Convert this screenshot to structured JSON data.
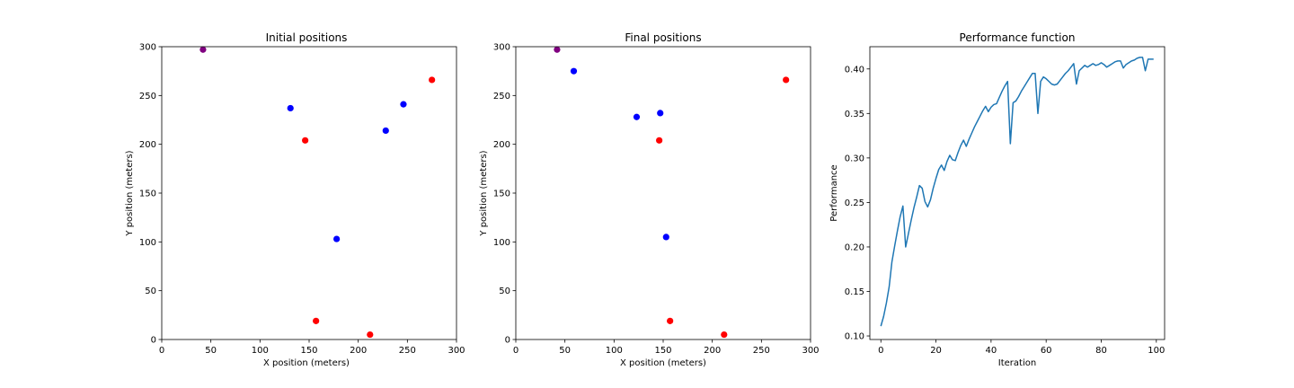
{
  "chart_data": [
    {
      "type": "scatter",
      "title": "Initial positions",
      "xlabel": "X position (meters)",
      "ylabel": "Y position (meters)",
      "xlim": [
        0,
        300
      ],
      "ylim": [
        0,
        300
      ],
      "xticks": [
        "0",
        "50",
        "100",
        "150",
        "200",
        "250",
        "300"
      ],
      "yticks": [
        "0",
        "50",
        "100",
        "150",
        "200",
        "250",
        "300"
      ],
      "grid": false,
      "points": [
        {
          "x": 42,
          "y": 297,
          "color": "#800080"
        },
        {
          "x": 275,
          "y": 266,
          "color": "#ff0000"
        },
        {
          "x": 146,
          "y": 204,
          "color": "#ff0000"
        },
        {
          "x": 157,
          "y": 19,
          "color": "#ff0000"
        },
        {
          "x": 212,
          "y": 5,
          "color": "#ff0000"
        },
        {
          "x": 131,
          "y": 237,
          "color": "#0000ff"
        },
        {
          "x": 246,
          "y": 241,
          "color": "#0000ff"
        },
        {
          "x": 228,
          "y": 214,
          "color": "#0000ff"
        },
        {
          "x": 178,
          "y": 103,
          "color": "#0000ff"
        }
      ]
    },
    {
      "type": "scatter",
      "title": "Final positions",
      "xlabel": "X position (meters)",
      "ylabel": "Y position (meters)",
      "xlim": [
        0,
        300
      ],
      "ylim": [
        0,
        300
      ],
      "xticks": [
        "0",
        "50",
        "100",
        "150",
        "200",
        "250",
        "300"
      ],
      "yticks": [
        "0",
        "50",
        "100",
        "150",
        "200",
        "250",
        "300"
      ],
      "grid": false,
      "points": [
        {
          "x": 42,
          "y": 297,
          "color": "#800080"
        },
        {
          "x": 275,
          "y": 266,
          "color": "#ff0000"
        },
        {
          "x": 146,
          "y": 204,
          "color": "#ff0000"
        },
        {
          "x": 157,
          "y": 19,
          "color": "#ff0000"
        },
        {
          "x": 212,
          "y": 5,
          "color": "#ff0000"
        },
        {
          "x": 59,
          "y": 275,
          "color": "#0000ff"
        },
        {
          "x": 123,
          "y": 228,
          "color": "#0000ff"
        },
        {
          "x": 147,
          "y": 232,
          "color": "#0000ff"
        },
        {
          "x": 153,
          "y": 105,
          "color": "#0000ff"
        }
      ]
    },
    {
      "type": "line",
      "title": "Performance function",
      "xlabel": "Iteration",
      "ylabel": "Performance",
      "xlim": [
        -4,
        103
      ],
      "ylim": [
        0.096,
        0.425
      ],
      "xticks": [
        "0",
        "20",
        "40",
        "60",
        "80",
        "100"
      ],
      "yticks": [
        "0.10",
        "0.15",
        "0.20",
        "0.25",
        "0.30",
        "0.35",
        "0.40"
      ],
      "grid": false,
      "series": [
        {
          "color": "#1f77b4",
          "x": [
            0,
            1,
            2,
            3,
            4,
            5,
            6,
            7,
            8,
            9,
            10,
            11,
            12,
            13,
            14,
            15,
            16,
            17,
            18,
            19,
            20,
            21,
            22,
            23,
            24,
            25,
            26,
            27,
            28,
            29,
            30,
            31,
            32,
            33,
            34,
            35,
            36,
            37,
            38,
            39,
            40,
            41,
            42,
            43,
            44,
            45,
            46,
            47,
            48,
            49,
            50,
            51,
            52,
            53,
            54,
            55,
            56,
            57,
            58,
            59,
            60,
            61,
            62,
            63,
            64,
            65,
            66,
            67,
            68,
            69,
            70,
            71,
            72,
            73,
            74,
            75,
            76,
            77,
            78,
            79,
            80,
            81,
            82,
            83,
            84,
            85,
            86,
            87,
            88,
            89,
            90,
            91,
            92,
            93,
            94,
            95,
            96,
            97,
            98,
            99
          ],
          "values": [
            0.111,
            0.122,
            0.137,
            0.155,
            0.183,
            0.201,
            0.218,
            0.234,
            0.246,
            0.2,
            0.215,
            0.23,
            0.244,
            0.256,
            0.269,
            0.266,
            0.251,
            0.245,
            0.253,
            0.266,
            0.277,
            0.287,
            0.292,
            0.286,
            0.296,
            0.303,
            0.298,
            0.297,
            0.306,
            0.314,
            0.32,
            0.313,
            0.321,
            0.328,
            0.335,
            0.341,
            0.347,
            0.353,
            0.358,
            0.352,
            0.357,
            0.36,
            0.361,
            0.368,
            0.375,
            0.381,
            0.386,
            0.316,
            0.362,
            0.364,
            0.369,
            0.375,
            0.38,
            0.385,
            0.39,
            0.395,
            0.395,
            0.35,
            0.386,
            0.391,
            0.389,
            0.386,
            0.383,
            0.382,
            0.383,
            0.387,
            0.391,
            0.395,
            0.398,
            0.402,
            0.406,
            0.383,
            0.398,
            0.401,
            0.404,
            0.402,
            0.404,
            0.406,
            0.404,
            0.405,
            0.407,
            0.405,
            0.402,
            0.404,
            0.406,
            0.408,
            0.409,
            0.409,
            0.401,
            0.405,
            0.407,
            0.409,
            0.41,
            0.412,
            0.413,
            0.413,
            0.398,
            0.411,
            0.411,
            0.411
          ]
        }
      ]
    }
  ]
}
